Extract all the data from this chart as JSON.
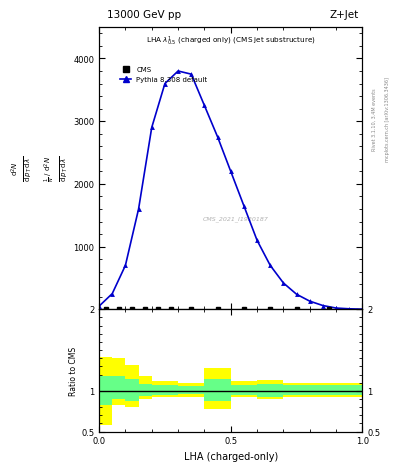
{
  "title_left": "13000 GeV pp",
  "title_right": "Z+Jet",
  "watermark": "CMS_2021_I1920187",
  "rivet_label": "Rivet 3.1.10, 3.4M events",
  "mcplots_label": "mcplots.cern.ch [arXiv:1306.3436]",
  "xlabel": "LHA (charged-only)",
  "cms_label": "CMS",
  "pythia_label": "Pythia 8.308 default",
  "lha_x": [
    0.0,
    0.05,
    0.1,
    0.15,
    0.2,
    0.25,
    0.3,
    0.35,
    0.4,
    0.45,
    0.5,
    0.55,
    0.6,
    0.65,
    0.7,
    0.75,
    0.8,
    0.85,
    0.9,
    0.95,
    1.0
  ],
  "pythia_y": [
    50,
    250,
    700,
    1600,
    2900,
    3600,
    3800,
    3750,
    3250,
    2750,
    2200,
    1650,
    1100,
    700,
    420,
    240,
    130,
    60,
    20,
    8,
    2
  ],
  "cms_x": [
    0.025,
    0.075,
    0.125,
    0.175,
    0.225,
    0.275,
    0.35,
    0.45,
    0.55,
    0.65,
    0.75,
    0.875
  ],
  "cms_y": [
    2,
    2,
    2,
    2,
    2,
    2,
    2,
    2,
    2,
    2,
    2,
    2
  ],
  "ylim_main": [
    0,
    4500
  ],
  "main_yticks": [
    0,
    1000,
    2000,
    3000,
    4000
  ],
  "ylim_ratio": [
    0.5,
    2.0
  ],
  "ratio_yticks": [
    0.5,
    1.0,
    2.0
  ],
  "ratio_bin_edges": [
    0.0,
    0.05,
    0.1,
    0.15,
    0.2,
    0.3,
    0.4,
    0.5,
    0.6,
    0.7,
    0.8,
    1.0
  ],
  "ratio_yellow_low": [
    0.58,
    0.82,
    0.8,
    0.9,
    0.92,
    0.93,
    0.78,
    0.93,
    0.9,
    0.93,
    0.93
  ],
  "ratio_yellow_high": [
    1.42,
    1.4,
    1.32,
    1.18,
    1.12,
    1.1,
    1.28,
    1.12,
    1.13,
    1.1,
    1.1
  ],
  "ratio_green_low": [
    0.82,
    0.9,
    0.88,
    0.94,
    0.95,
    0.96,
    0.88,
    0.95,
    0.93,
    0.95,
    0.95
  ],
  "ratio_green_high": [
    1.18,
    1.18,
    1.14,
    1.08,
    1.07,
    1.06,
    1.14,
    1.07,
    1.08,
    1.07,
    1.07
  ],
  "blue_color": "#0000cc",
  "yellow_color": "#ffff00",
  "green_color": "#66ff88",
  "background_color": "#ffffff"
}
